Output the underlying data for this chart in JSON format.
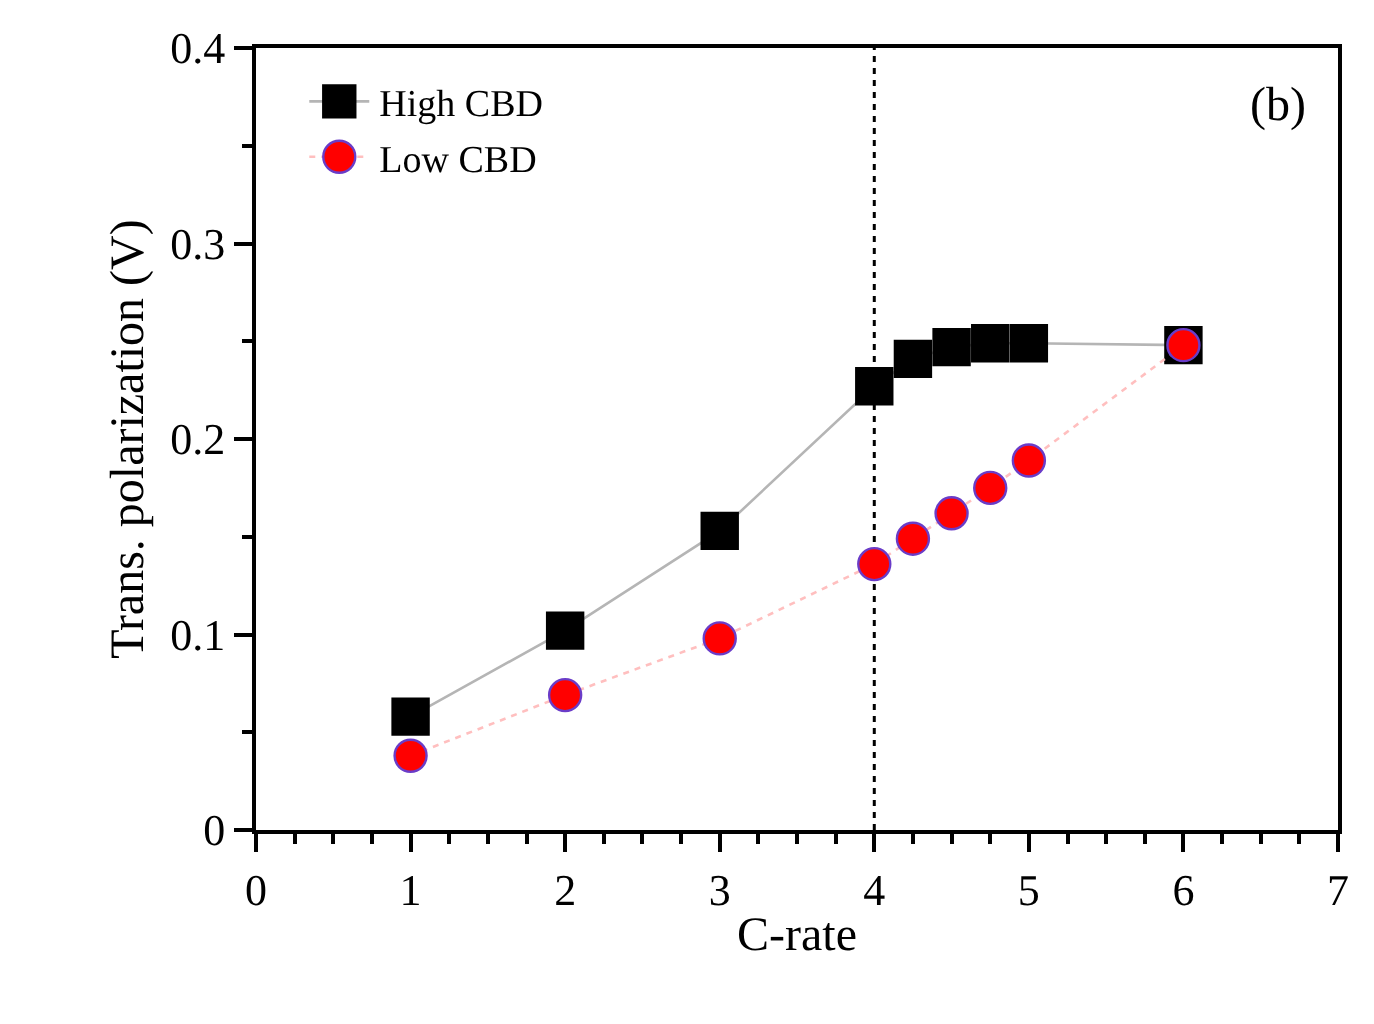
{
  "chart_data": {
    "type": "line",
    "xlabel": "C-rate",
    "ylabel": "Trans. polarization (V)",
    "x": [
      1,
      2,
      3,
      4,
      4.25,
      4.5,
      4.75,
      5,
      6
    ],
    "series": [
      {
        "name": "High CBD",
        "color": "#000000",
        "marker": "square",
        "line_style": "solid",
        "values": [
          0.058,
          0.102,
          0.153,
          0.227,
          0.241,
          0.247,
          0.249,
          0.249,
          0.248
        ]
      },
      {
        "name": "Low CBD",
        "color": "#ff0000",
        "marker": "circle",
        "line_style": "dotted",
        "values": [
          0.038,
          0.069,
          0.098,
          0.136,
          0.149,
          0.162,
          0.175,
          0.189,
          0.248
        ]
      }
    ],
    "xlim": [
      0,
      7
    ],
    "xticks": [
      0,
      1,
      2,
      3,
      4,
      5,
      6,
      7
    ],
    "ylim": [
      0,
      0.4
    ],
    "yticks": [
      0,
      0.1,
      0.2,
      0.3,
      0.4
    ],
    "ref_lines": [
      {
        "axis": "x",
        "value": 4,
        "line_style": "dotted",
        "color": "#000000"
      }
    ],
    "annotations": [
      "(b)"
    ],
    "legend": "top left",
    "grid": false
  }
}
